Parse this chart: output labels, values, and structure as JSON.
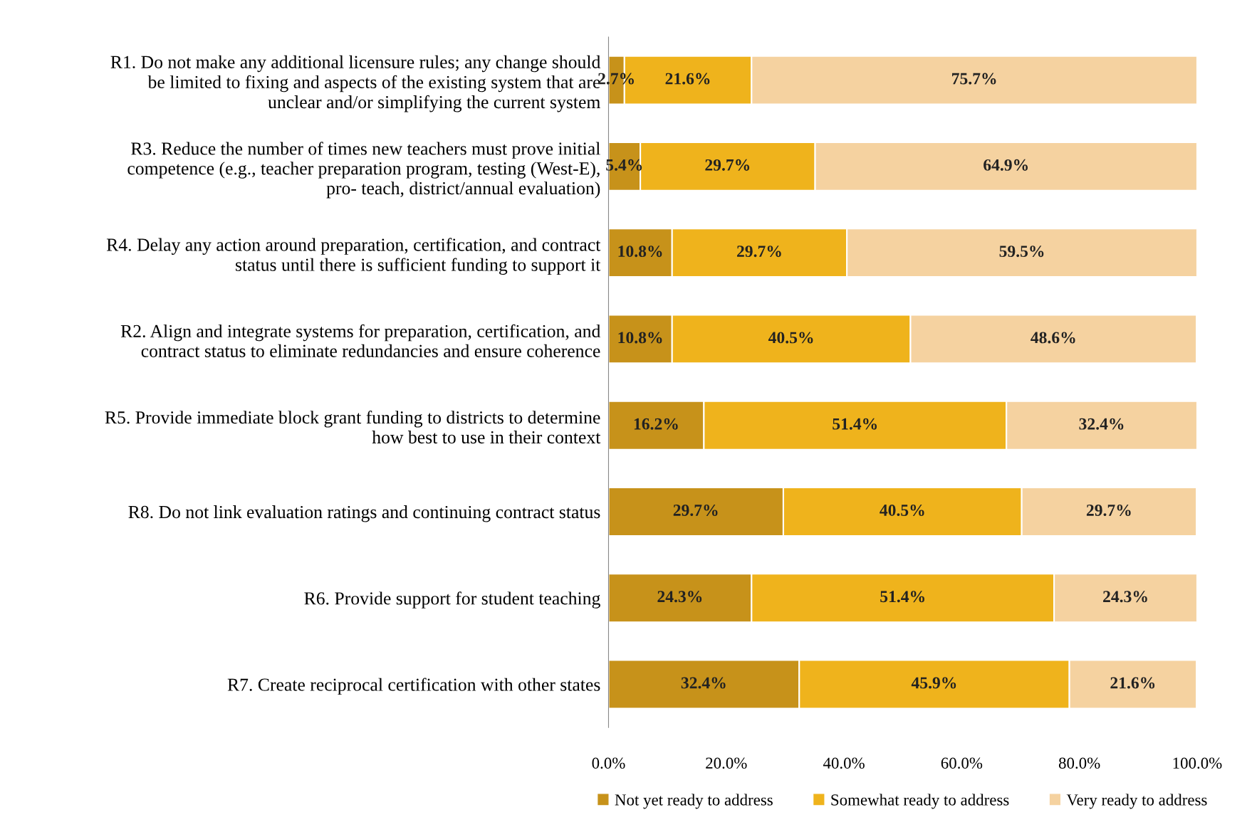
{
  "chart_data": {
    "type": "bar",
    "orientation": "horizontal",
    "stacked": true,
    "categories": [
      "R1. Do not make any additional licensure rules; any change should\nbe limited to fixing and aspects of the existing system that are\nunclear and/or simplifying the current system",
      "R3. Reduce the number of times new teachers must prove initial\ncompetence (e.g., teacher preparation program, testing (West-E),\npro- teach, district/annual evaluation)",
      "R4. Delay any action around preparation, certification, and contract\nstatus until there is sufficient funding to support it",
      "R2. Align and integrate systems for preparation, certification, and\ncontract status to eliminate redundancies and ensure coherence",
      "R5. Provide immediate block grant funding to districts to determine\nhow best to use in their context",
      "R8. Do not link evaluation ratings and continuing contract status",
      "R6. Provide support for student teaching",
      "R7. Create reciprocal certification with other states"
    ],
    "series": [
      {
        "name": "Not yet ready to address",
        "color": "#c7921a",
        "values": [
          2.7,
          5.4,
          10.8,
          10.8,
          16.2,
          29.7,
          24.3,
          32.4
        ],
        "value_labels": [
          "2.7%",
          "5.4%",
          "10.8%",
          "10.8%",
          "16.2%",
          "29.7%",
          "24.3%",
          "32.4%"
        ]
      },
      {
        "name": "Somewhat ready to address",
        "color": "#efb31c",
        "values": [
          21.6,
          29.7,
          29.7,
          40.5,
          51.4,
          40.5,
          51.4,
          45.9
        ],
        "value_labels": [
          "21.6%",
          "29.7%",
          "29.7%",
          "40.5%",
          "51.4%",
          "40.5%",
          "51.4%",
          "45.9%"
        ]
      },
      {
        "name": "Very ready to address",
        "color": "#f5d2a0",
        "values": [
          75.7,
          64.9,
          59.5,
          48.6,
          32.4,
          29.7,
          24.3,
          21.6
        ],
        "value_labels": [
          "75.7%",
          "64.9%",
          "59.5%",
          "48.6%",
          "32.4%",
          "29.7%",
          "24.3%",
          "21.6%"
        ]
      }
    ],
    "xlim": [
      0,
      100
    ],
    "xticks": [
      {
        "value": 0,
        "label": "0.0%"
      },
      {
        "value": 20,
        "label": "20.0%"
      },
      {
        "value": 40,
        "label": "40.0%"
      },
      {
        "value": 60,
        "label": "60.0%"
      },
      {
        "value": 80,
        "label": "80.0%"
      },
      {
        "value": 100,
        "label": "100.0%"
      }
    ],
    "grid": false,
    "legend": "bottom"
  }
}
